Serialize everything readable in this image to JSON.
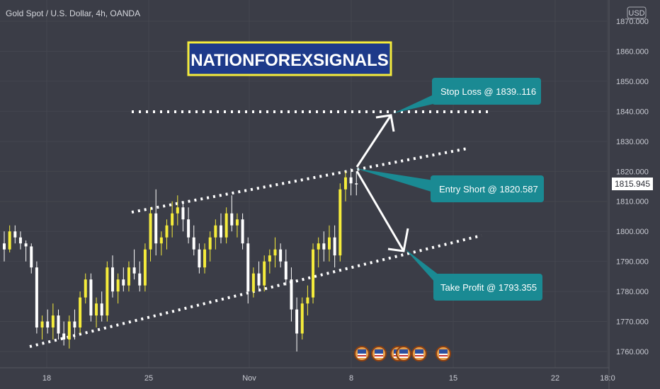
{
  "header": {
    "symbol_title": "Gold Spot / U.S. Dollar, 4h, OANDA",
    "currency_badge": "USD"
  },
  "banner": {
    "text": "NATIONFOREXSIGNALS"
  },
  "callouts": {
    "stop_loss": "Stop Loss @ 1839..116",
    "entry": "Entry Short @ 1820.587",
    "take_profit": "Take Profit @ 1793.355"
  },
  "colors": {
    "background": "#3b3d47",
    "bull": "#f5ec3b",
    "bear": "#ffffff",
    "callout": "#1a8a93",
    "banner_bg": "#1e3a8a",
    "banner_border": "#f5ec3b",
    "price_tag_bg": "#ffffff"
  },
  "chart_data": {
    "type": "candlestick",
    "title": "Gold Spot / U.S. Dollar, 4h, OANDA",
    "currency": "USD",
    "last_price": "1815.945",
    "y_ticks": [
      "1870.000",
      "1860.000",
      "1850.000",
      "1840.000",
      "1830.000",
      "1820.000",
      "1810.000",
      "1800.000",
      "1790.000",
      "1780.000",
      "1770.000",
      "1760.000"
    ],
    "x_ticks": [
      "18",
      "25",
      "Nov",
      "8",
      "15",
      "22",
      "18:0"
    ],
    "ylim": [
      1756,
      1875
    ],
    "levels": {
      "stop_loss": 1839.116,
      "entry": 1820.587,
      "take_profit": 1793.355
    },
    "candles": [
      {
        "o": 1796,
        "h": 1800,
        "l": 1790,
        "c": 1794
      },
      {
        "o": 1794,
        "h": 1802,
        "l": 1793,
        "c": 1800
      },
      {
        "o": 1800,
        "h": 1802,
        "l": 1796,
        "c": 1798
      },
      {
        "o": 1798,
        "h": 1800,
        "l": 1794,
        "c": 1796
      },
      {
        "o": 1796,
        "h": 1797,
        "l": 1790,
        "c": 1795
      },
      {
        "o": 1795,
        "h": 1796,
        "l": 1786,
        "c": 1788
      },
      {
        "o": 1788,
        "h": 1790,
        "l": 1766,
        "c": 1768
      },
      {
        "o": 1768,
        "h": 1772,
        "l": 1764,
        "c": 1770
      },
      {
        "o": 1770,
        "h": 1774,
        "l": 1766,
        "c": 1768
      },
      {
        "o": 1768,
        "h": 1776,
        "l": 1764,
        "c": 1772
      },
      {
        "o": 1772,
        "h": 1774,
        "l": 1764,
        "c": 1766
      },
      {
        "o": 1766,
        "h": 1770,
        "l": 1762,
        "c": 1764
      },
      {
        "o": 1764,
        "h": 1772,
        "l": 1761,
        "c": 1770
      },
      {
        "o": 1770,
        "h": 1774,
        "l": 1764,
        "c": 1768
      },
      {
        "o": 1768,
        "h": 1780,
        "l": 1766,
        "c": 1778
      },
      {
        "o": 1778,
        "h": 1786,
        "l": 1776,
        "c": 1784
      },
      {
        "o": 1784,
        "h": 1786,
        "l": 1770,
        "c": 1772
      },
      {
        "o": 1772,
        "h": 1778,
        "l": 1768,
        "c": 1776
      },
      {
        "o": 1776,
        "h": 1780,
        "l": 1770,
        "c": 1772
      },
      {
        "o": 1772,
        "h": 1790,
        "l": 1770,
        "c": 1788
      },
      {
        "o": 1788,
        "h": 1792,
        "l": 1778,
        "c": 1780
      },
      {
        "o": 1780,
        "h": 1786,
        "l": 1776,
        "c": 1784
      },
      {
        "o": 1784,
        "h": 1788,
        "l": 1780,
        "c": 1782
      },
      {
        "o": 1782,
        "h": 1790,
        "l": 1780,
        "c": 1788
      },
      {
        "o": 1788,
        "h": 1794,
        "l": 1784,
        "c": 1786
      },
      {
        "o": 1786,
        "h": 1790,
        "l": 1780,
        "c": 1782
      },
      {
        "o": 1782,
        "h": 1796,
        "l": 1780,
        "c": 1794
      },
      {
        "o": 1794,
        "h": 1808,
        "l": 1790,
        "c": 1806
      },
      {
        "o": 1806,
        "h": 1814,
        "l": 1792,
        "c": 1796
      },
      {
        "o": 1796,
        "h": 1800,
        "l": 1792,
        "c": 1798
      },
      {
        "o": 1798,
        "h": 1804,
        "l": 1794,
        "c": 1802
      },
      {
        "o": 1802,
        "h": 1810,
        "l": 1798,
        "c": 1806
      },
      {
        "o": 1806,
        "h": 1812,
        "l": 1802,
        "c": 1808
      },
      {
        "o": 1808,
        "h": 1810,
        "l": 1800,
        "c": 1804
      },
      {
        "o": 1804,
        "h": 1808,
        "l": 1796,
        "c": 1798
      },
      {
        "o": 1798,
        "h": 1802,
        "l": 1792,
        "c": 1794
      },
      {
        "o": 1794,
        "h": 1796,
        "l": 1786,
        "c": 1788
      },
      {
        "o": 1788,
        "h": 1796,
        "l": 1786,
        "c": 1794
      },
      {
        "o": 1794,
        "h": 1800,
        "l": 1790,
        "c": 1798
      },
      {
        "o": 1798,
        "h": 1804,
        "l": 1794,
        "c": 1802
      },
      {
        "o": 1802,
        "h": 1806,
        "l": 1796,
        "c": 1798
      },
      {
        "o": 1798,
        "h": 1808,
        "l": 1796,
        "c": 1806
      },
      {
        "o": 1806,
        "h": 1812,
        "l": 1800,
        "c": 1802
      },
      {
        "o": 1802,
        "h": 1806,
        "l": 1798,
        "c": 1804
      },
      {
        "o": 1804,
        "h": 1806,
        "l": 1794,
        "c": 1796
      },
      {
        "o": 1796,
        "h": 1798,
        "l": 1776,
        "c": 1780
      },
      {
        "o": 1780,
        "h": 1788,
        "l": 1778,
        "c": 1786
      },
      {
        "o": 1786,
        "h": 1790,
        "l": 1780,
        "c": 1782
      },
      {
        "o": 1782,
        "h": 1792,
        "l": 1780,
        "c": 1790
      },
      {
        "o": 1790,
        "h": 1794,
        "l": 1786,
        "c": 1792
      },
      {
        "o": 1792,
        "h": 1798,
        "l": 1788,
        "c": 1794
      },
      {
        "o": 1794,
        "h": 1796,
        "l": 1788,
        "c": 1790
      },
      {
        "o": 1790,
        "h": 1794,
        "l": 1782,
        "c": 1784
      },
      {
        "o": 1784,
        "h": 1788,
        "l": 1770,
        "c": 1774
      },
      {
        "o": 1774,
        "h": 1778,
        "l": 1760,
        "c": 1766
      },
      {
        "o": 1766,
        "h": 1778,
        "l": 1764,
        "c": 1776
      },
      {
        "o": 1776,
        "h": 1782,
        "l": 1772,
        "c": 1778
      },
      {
        "o": 1778,
        "h": 1796,
        "l": 1776,
        "c": 1794
      },
      {
        "o": 1794,
        "h": 1798,
        "l": 1788,
        "c": 1796
      },
      {
        "o": 1796,
        "h": 1800,
        "l": 1790,
        "c": 1794
      },
      {
        "o": 1794,
        "h": 1802,
        "l": 1790,
        "c": 1798
      },
      {
        "o": 1798,
        "h": 1802,
        "l": 1788,
        "c": 1792
      },
      {
        "o": 1792,
        "h": 1816,
        "l": 1790,
        "c": 1814
      },
      {
        "o": 1814,
        "h": 1820,
        "l": 1810,
        "c": 1818
      },
      {
        "o": 1818,
        "h": 1821,
        "l": 1812,
        "c": 1816
      },
      {
        "o": 1816,
        "h": 1820,
        "l": 1812,
        "c": 1815.945
      }
    ]
  }
}
